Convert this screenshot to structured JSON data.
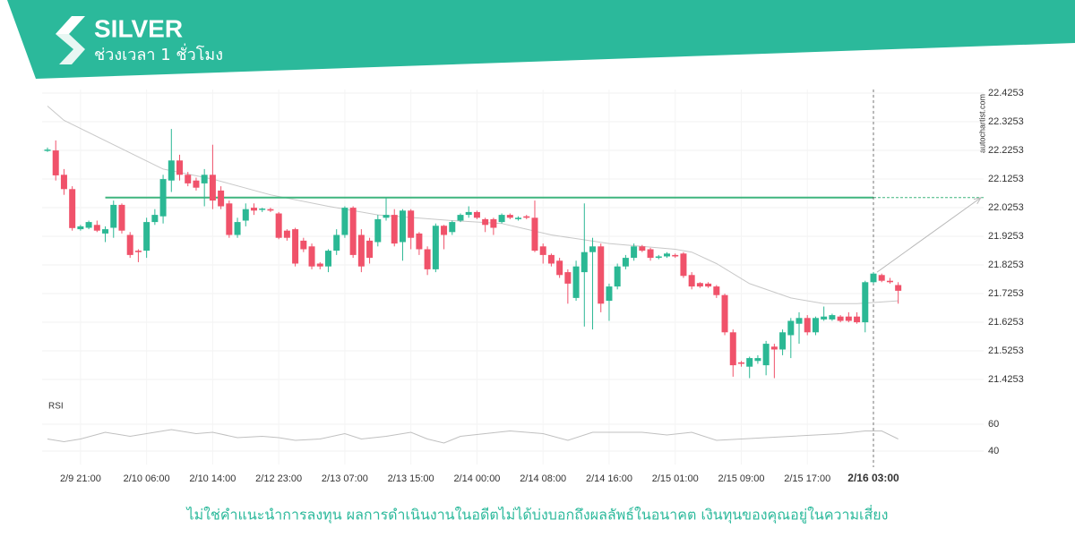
{
  "chart_data": {
    "type": "candlestick",
    "title": "SILVER",
    "subtitle": "ช่วงเวลา 1 ชั่วโมง",
    "watermark": "autochartist.com",
    "rsi_label": "RSI",
    "up_color": "#2bb894",
    "down_color": "#f0526a",
    "categories": [
      null,
      null,
      null,
      null,
      "2/9 21:00",
      null,
      null,
      null,
      null,
      null,
      null,
      null,
      "2/10 06:00",
      null,
      null,
      null,
      null,
      null,
      null,
      null,
      "2/10 14:00",
      null,
      null,
      null,
      null,
      null,
      null,
      null,
      "2/12 23:00",
      null,
      null,
      null,
      null,
      null,
      null,
      null,
      "2/13 07:00",
      null,
      null,
      null,
      null,
      null,
      null,
      null,
      "2/13 15:00",
      null,
      null,
      null,
      null,
      null,
      null,
      null,
      "2/14 00:00",
      null,
      null,
      null,
      null,
      null,
      null,
      null,
      "2/14 08:00",
      null,
      null,
      null,
      null,
      null,
      null,
      null,
      "2/14 16:00",
      null,
      null,
      null,
      null,
      null,
      null,
      null,
      "2/15 01:00",
      null,
      null,
      null,
      null,
      null,
      null,
      null,
      "2/15 09:00",
      null,
      null,
      null,
      null,
      null,
      null,
      null,
      "2/15 17:00",
      null,
      null,
      null,
      null,
      null,
      null,
      null,
      "2/16 03:00",
      null,
      null,
      null
    ],
    "open": [
      22.225,
      22.225,
      22.14,
      22.09,
      21.95,
      21.955,
      21.965,
      21.935,
      21.955,
      22.035,
      21.93,
      21.875,
      21.875,
      21.975,
      21.995,
      22.12,
      22.19,
      22.14,
      22.12,
      22.11,
      22.14,
      22.085,
      22.04,
      21.93,
      21.98,
      22.025,
      22.02,
      22.02,
      22.005,
      21.945,
      21.95,
      21.91,
      21.89,
      21.83,
      21.82,
      21.875,
      21.93,
      22.025,
      21.93,
      21.91,
      21.905,
      21.99,
      22.0,
      21.905,
      22.015,
      21.935,
      21.88,
      21.81,
      21.962,
      21.94,
      21.98,
      22.0,
      22.01,
      21.985,
      21.985,
      21.975,
      22.0,
      21.985,
      21.995,
      21.99,
      21.89,
      21.86,
      21.84,
      21.8,
      21.71,
      21.8,
      21.87,
      21.89,
      21.7,
      21.75,
      21.82,
      21.85,
      21.89,
      21.88,
      21.85,
      21.855,
      21.86,
      21.865,
      21.79,
      21.762,
      21.76,
      21.75,
      21.72,
      21.59,
      21.485,
      21.47,
      21.49,
      21.475,
      21.54,
      21.53,
      21.58,
      21.62,
      21.64,
      21.59,
      21.635,
      21.635,
      21.645,
      21.645,
      21.645,
      21.625,
      21.765,
      21.79,
      21.77,
      21.755
    ],
    "high": [
      22.235,
      22.26,
      22.16,
      22.1,
      21.965,
      21.98,
      21.98,
      21.96,
      22.05,
      22.04,
      21.94,
      21.88,
      21.99,
      22.02,
      22.14,
      22.3,
      22.21,
      22.15,
      22.13,
      22.16,
      22.245,
      22.1,
      22.05,
      21.99,
      22.04,
      22.04,
      22.025,
      22.025,
      22.01,
      21.95,
      21.955,
      21.92,
      21.9,
      21.835,
      21.88,
      21.95,
      22.03,
      22.03,
      21.95,
      21.92,
      22.0,
      22.06,
      22.02,
      22.02,
      22.02,
      21.94,
      21.89,
      21.97,
      21.965,
      21.98,
      22.005,
      22.03,
      22.015,
      21.99,
      21.99,
      22.005,
      22.005,
      21.995,
      22.0,
      22.05,
      21.9,
      21.865,
      21.85,
      21.81,
      21.84,
      22.04,
      21.92,
      21.9,
      21.76,
      21.83,
      21.86,
      21.9,
      21.895,
      21.885,
      21.86,
      21.87,
      21.865,
      21.87,
      21.8,
      21.765,
      21.765,
      21.755,
      21.725,
      21.6,
      21.49,
      21.505,
      21.51,
      21.56,
      21.55,
      21.6,
      21.64,
      21.66,
      21.65,
      21.645,
      21.68,
      21.655,
      21.65,
      21.66,
      21.66,
      21.77,
      21.8,
      21.795,
      21.78,
      21.765
    ],
    "low": [
      22.22,
      22.12,
      22.07,
      21.945,
      21.945,
      21.95,
      21.94,
      21.905,
      21.92,
      21.935,
      21.85,
      21.835,
      21.85,
      21.965,
      21.97,
      22.08,
      22.12,
      22.1,
      22.085,
      22.03,
      22.02,
      22.02,
      21.92,
      21.92,
      21.96,
      22.0,
      22.01,
      22.01,
      21.915,
      21.91,
      21.82,
      21.87,
      21.81,
      21.81,
      21.8,
      21.86,
      21.92,
      21.85,
      21.8,
      21.83,
      21.89,
      21.98,
      21.89,
      21.84,
      21.88,
      21.86,
      21.79,
      21.8,
      21.88,
      21.93,
      21.975,
      21.99,
      21.985,
      21.94,
      21.93,
      21.97,
      21.985,
      21.98,
      21.985,
      21.87,
      21.83,
      21.82,
      21.78,
      21.69,
      21.7,
      21.61,
      21.6,
      21.66,
      21.63,
      21.74,
      21.81,
      21.84,
      21.87,
      21.84,
      21.845,
      21.85,
      21.85,
      21.78,
      21.74,
      21.745,
      21.745,
      21.71,
      21.58,
      21.435,
      21.47,
      21.43,
      21.48,
      21.44,
      21.43,
      21.51,
      21.5,
      21.55,
      21.58,
      21.58,
      21.63,
      21.63,
      21.625,
      21.625,
      21.62,
      21.59,
      21.76,
      21.765,
      21.76,
      21.69
    ],
    "close": [
      22.228,
      22.138,
      22.09,
      21.954,
      21.96,
      21.975,
      21.945,
      21.95,
      22.035,
      21.945,
      21.86,
      21.87,
      21.975,
      22.0,
      22.125,
      22.19,
      22.14,
      22.11,
      22.095,
      22.14,
      22.05,
      22.03,
      21.93,
      21.975,
      22.02,
      22.015,
      22.022,
      22.015,
      21.92,
      21.92,
      21.83,
      21.88,
      21.82,
      21.82,
      21.875,
      21.93,
      22.025,
      21.86,
      21.82,
      21.85,
      21.985,
      22.0,
      21.9,
      22.015,
      21.92,
      21.88,
      21.81,
      21.962,
      21.93,
      21.975,
      22.0,
      22.01,
      21.99,
      21.965,
      21.955,
      22.0,
      21.99,
      21.99,
      21.99,
      21.875,
      21.86,
      21.83,
      21.79,
      21.76,
      21.82,
      21.87,
      21.89,
      21.69,
      21.75,
      21.82,
      21.85,
      21.89,
      21.875,
      21.85,
      21.855,
      21.865,
      21.855,
      21.787,
      21.75,
      21.75,
      21.75,
      21.72,
      21.59,
      21.475,
      21.48,
      21.5,
      21.5,
      21.55,
      21.53,
      21.59,
      21.63,
      21.64,
      21.59,
      21.64,
      21.645,
      21.65,
      21.63,
      21.63,
      21.625,
      21.765,
      21.795,
      21.77,
      21.765,
      21.735
    ],
    "ylim": [
      21.3753,
      22.4378
    ],
    "yticks": [
      22.4253,
      22.3253,
      22.2253,
      22.1253,
      22.0253,
      21.9253,
      21.8253,
      21.7253,
      21.6253,
      21.5253,
      21.4253
    ],
    "ma": {
      "color": "#c8c8c8",
      "x": [
        0,
        2,
        14,
        20,
        27,
        34,
        40,
        49,
        55,
        61,
        68,
        76,
        78,
        81,
        85,
        90,
        94,
        98,
        103
      ],
      "values": [
        22.38,
        22.33,
        22.16,
        22.125,
        22.07,
        22.03,
        22.0,
        21.98,
        21.97,
        21.93,
        21.9,
        21.88,
        21.87,
        21.83,
        21.76,
        21.71,
        21.69,
        21.69,
        21.7
      ]
    },
    "resistance": {
      "value": 22.0603,
      "from": 7,
      "color": "#3fb57e"
    },
    "forecast": {
      "x": [
        100,
        113
      ],
      "values": [
        21.8,
        22.06
      ],
      "color": "#b8b8b8"
    },
    "marker_index": 100,
    "rsi": {
      "color": "#c0c0c0",
      "ylim": [
        30,
        72
      ],
      "yticks": [
        60,
        40
      ],
      "x": [
        0,
        2,
        4,
        7,
        10,
        13,
        15,
        18,
        20,
        23,
        26,
        28,
        30,
        33,
        36,
        38,
        41,
        44,
        46,
        48,
        50,
        53,
        56,
        60,
        63,
        66,
        69,
        72,
        75,
        78,
        81,
        84,
        87,
        90,
        93,
        96,
        99,
        101,
        103
      ],
      "values": [
        49,
        47,
        49,
        54,
        51,
        54,
        56,
        53,
        54,
        50,
        51,
        50,
        48,
        49,
        53,
        49,
        51,
        54,
        49,
        46,
        51,
        53,
        55,
        53,
        48,
        54,
        54,
        54,
        52,
        54,
        48,
        49,
        50,
        51,
        52,
        53,
        55,
        55,
        49
      ]
    }
  },
  "disclaimer": "ไม่ใช่คำแนะนำการลงทุน ผลการดำเนินงานในอดีตไม่ได้บ่งบอกถึงผลลัพธ์ในอนาคต เงินทุนของคุณอยู่ในความเสี่ยง"
}
